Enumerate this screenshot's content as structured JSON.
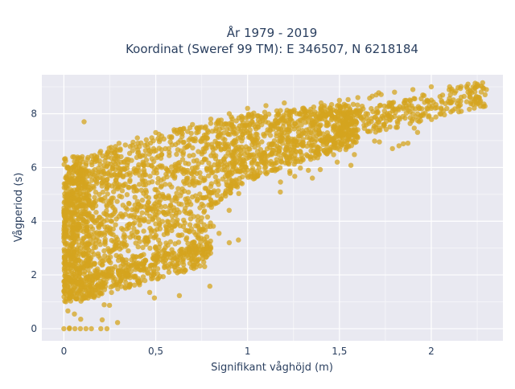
{
  "chart_data": {
    "type": "scatter",
    "title_lines": [
      "År 1979 - 2019",
      "Koordinat (Sweref 99 TM): E 346507, N 6218184"
    ],
    "xlabel": "Signifikant våghöjd (m)",
    "ylabel": "Vågperiod (s)",
    "xlim": [
      -0.12,
      2.39
    ],
    "ylim": [
      -0.45,
      9.45
    ],
    "x_ticks": [
      {
        "value": 0,
        "label": "0"
      },
      {
        "value": 0.5,
        "label": "0,5"
      },
      {
        "value": 1,
        "label": "1"
      },
      {
        "value": 1.5,
        "label": "1,5"
      },
      {
        "value": 2,
        "label": "2"
      }
    ],
    "y_ticks": [
      {
        "value": 0,
        "label": "0"
      },
      {
        "value": 2,
        "label": "2"
      },
      {
        "value": 4,
        "label": "4"
      },
      {
        "value": 6,
        "label": "6"
      },
      {
        "value": 8,
        "label": "8"
      }
    ],
    "grid": true,
    "marker_color": "#d4a41f",
    "plot_background": "#e9e9f1",
    "point_cloud": {
      "description_of_density": "dense band",
      "x_min": 0.0,
      "x_max": 2.3,
      "points": [
        [
          0.0,
          0.0
        ],
        [
          0.03,
          0.0
        ],
        [
          0.06,
          0.0
        ],
        [
          0.09,
          0.0
        ],
        [
          0.12,
          0.0
        ],
        [
          0.15,
          0.0
        ],
        [
          0.05,
          1.2
        ],
        [
          0.1,
          1.1
        ],
        [
          0.15,
          1.2
        ],
        [
          0.2,
          1.6
        ],
        [
          0.3,
          2.0
        ],
        [
          0.4,
          2.3
        ],
        [
          0.5,
          2.6
        ],
        [
          0.6,
          2.8
        ],
        [
          0.7,
          3.0
        ],
        [
          0.8,
          3.0
        ],
        [
          0.95,
          3.3
        ],
        [
          0.9,
          3.2
        ],
        [
          0.05,
          6.0
        ],
        [
          0.1,
          6.4
        ],
        [
          0.11,
          7.7
        ],
        [
          0.2,
          6.6
        ],
        [
          0.3,
          6.9
        ],
        [
          0.4,
          7.1
        ],
        [
          0.5,
          7.3
        ],
        [
          0.6,
          7.4
        ],
        [
          0.7,
          7.6
        ],
        [
          0.8,
          7.8
        ],
        [
          0.9,
          8.0
        ],
        [
          1.0,
          8.2
        ],
        [
          1.1,
          8.3
        ],
        [
          1.2,
          8.4
        ],
        [
          1.3,
          8.2
        ],
        [
          1.4,
          8.4
        ],
        [
          1.5,
          8.5
        ],
        [
          1.6,
          8.6
        ],
        [
          1.7,
          8.7
        ],
        [
          1.8,
          8.8
        ],
        [
          1.9,
          8.9
        ],
        [
          2.0,
          9.0
        ],
        [
          2.1,
          9.0
        ],
        [
          2.2,
          9.1
        ],
        [
          2.25,
          9.1
        ],
        [
          2.3,
          8.9
        ],
        [
          2.2,
          8.8
        ],
        [
          2.1,
          8.4
        ],
        [
          2.0,
          8.2
        ],
        [
          1.9,
          8.0
        ],
        [
          1.8,
          7.9
        ],
        [
          1.7,
          7.6
        ],
        [
          1.6,
          7.4
        ],
        [
          1.5,
          7.2
        ],
        [
          1.4,
          7.0
        ],
        [
          1.3,
          6.8
        ],
        [
          1.2,
          6.5
        ],
        [
          1.1,
          6.2
        ],
        [
          1.0,
          5.9
        ],
        [
          0.9,
          5.6
        ],
        [
          0.8,
          5.3
        ],
        [
          0.7,
          4.9
        ],
        [
          0.6,
          4.4
        ],
        [
          0.5,
          3.9
        ],
        [
          0.45,
          3.3
        ],
        [
          0.4,
          3.6
        ],
        [
          0.3,
          3.2
        ]
      ]
    }
  }
}
